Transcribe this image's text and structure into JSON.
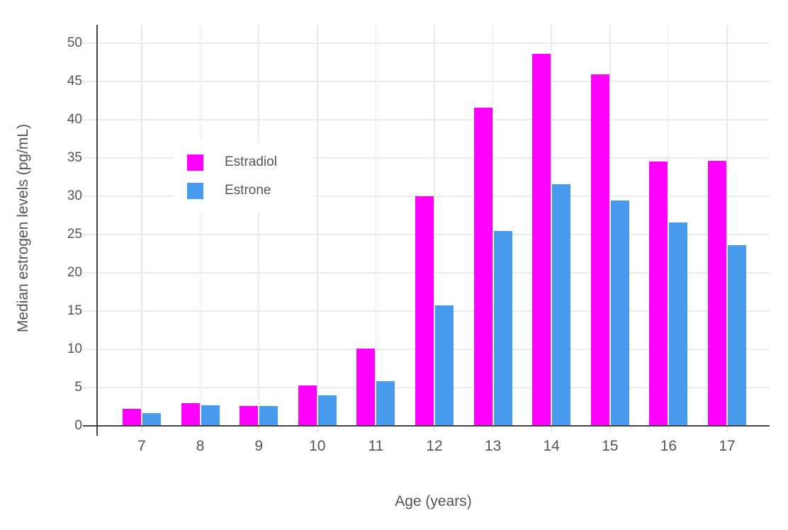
{
  "chart_data": {
    "type": "bar",
    "title": "",
    "xlabel": "Age (years)",
    "ylabel": "Median estrogen levels (pg/mL)",
    "categories": [
      7,
      8,
      9,
      10,
      11,
      12,
      13,
      14,
      15,
      16,
      17
    ],
    "series": [
      {
        "name": "Estradiol",
        "color": "#FF00FF",
        "values": [
          2.2,
          3.0,
          2.6,
          5.3,
          10.1,
          30.0,
          41.6,
          48.6,
          45.9,
          34.5,
          34.6
        ]
      },
      {
        "name": "Estrone",
        "color": "#489AEC",
        "values": [
          1.7,
          2.7,
          2.6,
          4.0,
          5.8,
          15.7,
          25.5,
          31.6,
          29.4,
          26.6,
          23.6
        ]
      }
    ],
    "ylim": [
      0,
      52
    ],
    "yticks": [
      0,
      5,
      10,
      15,
      20,
      25,
      30,
      35,
      40,
      45,
      50
    ],
    "grid": true,
    "legend_position": "inside-top-left"
  },
  "colors": {
    "grid": "#EBEBEB",
    "axis_line": "#444444",
    "text": "#555555",
    "background": "#FFFFFF"
  }
}
